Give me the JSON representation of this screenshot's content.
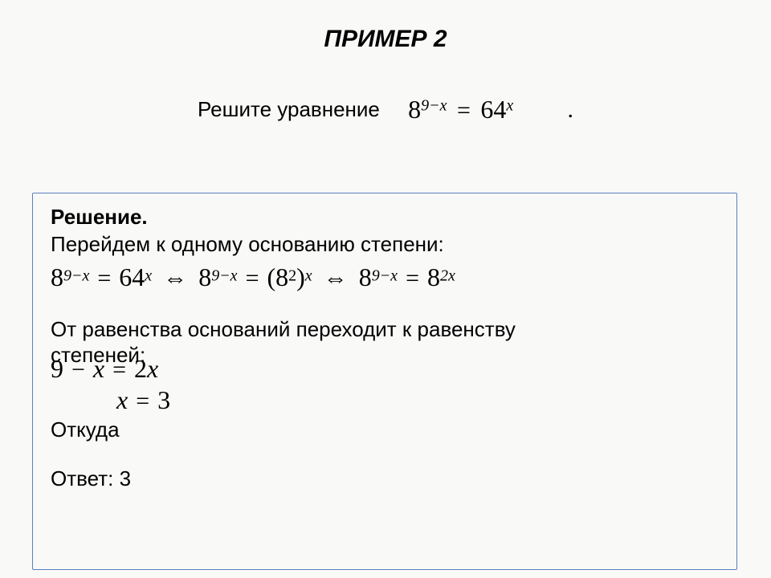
{
  "typography": {
    "body_font": "Arial",
    "math_font": "Times New Roman",
    "title_fontsize": 30,
    "text_fontsize": 26,
    "math_base_fontsize": 32,
    "math_sup_fontsize": 20
  },
  "colors": {
    "background": "#f9f9f8",
    "text": "#000000",
    "box_border": "#5a7fbf"
  },
  "title": "ПРИМЕР 2",
  "prompt": "Решите уравнение",
  "equation_main": {
    "lhs_base": "8",
    "lhs_exp": "9−x",
    "rhs_base": "64",
    "rhs_exp": "x"
  },
  "solution": {
    "heading": "Решение.",
    "line1": " Перейдем к одному основанию степени:",
    "chain": {
      "p1": {
        "lb": "8",
        "le": "9−x",
        "rb": "64",
        "re": "x"
      },
      "p2": {
        "lb": "8",
        "le": "9−x",
        "rb": "(8",
        "rb_sup": "2",
        "rb_close": ")",
        "re": "x"
      },
      "p3": {
        "lb": "8",
        "le": "9−x",
        "rb": "8",
        "re": "2x"
      }
    },
    "line2a": "От равенства оснований переходит к равенству",
    "line2b": "степеней:",
    "linear": "9 − x = 2x",
    "result": "x = 3",
    "whence": "Откуда",
    "answer_label": "Ответ: 3"
  }
}
